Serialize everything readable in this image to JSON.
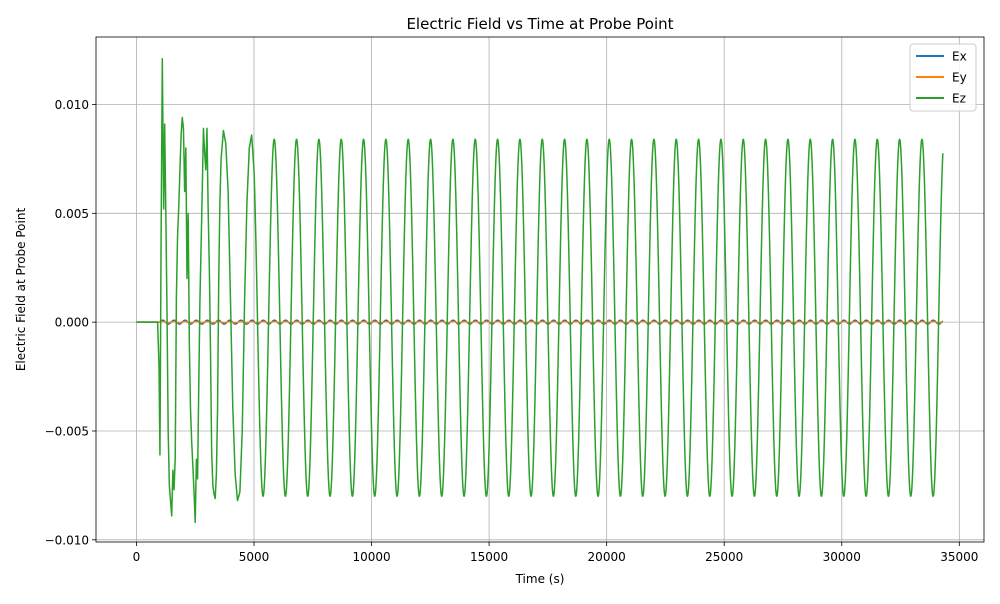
{
  "chart_data": {
    "type": "line",
    "title": "Electric Field vs Time at Probe Point",
    "xlabel": "Time (s)",
    "ylabel": "Electric Field at Probe Point",
    "xlim": [
      -1720,
      36050
    ],
    "ylim": [
      -0.0101,
      0.0131
    ],
    "x_ticks": [
      0,
      5000,
      10000,
      15000,
      20000,
      25000,
      30000,
      35000
    ],
    "x_tick_labels": [
      "0",
      "5000",
      "10000",
      "15000",
      "20000",
      "25000",
      "30000",
      "35000"
    ],
    "y_ticks": [
      -0.01,
      -0.005,
      0.0,
      0.005,
      0.01
    ],
    "y_tick_labels": [
      "−0.010",
      "−0.005",
      "0.000",
      "0.005",
      "0.010"
    ],
    "grid": true,
    "legend_position": "top-right",
    "series": [
      {
        "name": "Ex",
        "color": "#1f77b4",
        "x_start": 0,
        "x_end": 34300,
        "signal_start": 1000,
        "period": 475,
        "amplitude": 9e-05,
        "offset": 0.0,
        "description_points": {
          "x": [
            0,
            1000,
            1240,
            1475,
            1710,
            1950,
            34300
          ],
          "y": [
            0,
            0,
            9e-05,
            0,
            -9e-05,
            0,
            0
          ]
        }
      },
      {
        "name": "Ey",
        "color": "#ff7f0e",
        "x_start": 0,
        "x_end": 34300,
        "signal_start": 1000,
        "period": 475,
        "amplitude": 2e-05,
        "offset": 0.0,
        "description_points": {
          "x": [
            0,
            34300
          ],
          "y": [
            0,
            0
          ]
        }
      },
      {
        "name": "Ez",
        "color": "#2ca02c",
        "x_start": 0,
        "x_end": 34300,
        "signal_start": 1000,
        "period": 950,
        "steady_max": 0.0084,
        "steady_min": -0.008,
        "transient_points": {
          "x": [
            0,
            900,
            960,
            1000,
            1050,
            1100,
            1130,
            1160,
            1200,
            1250,
            1300,
            1350,
            1400,
            1450,
            1500,
            1550,
            1600,
            1650,
            1700,
            1750,
            1800,
            1850,
            1900,
            1950,
            2000,
            2050,
            2100,
            2150,
            2200,
            2250,
            2300,
            2350,
            2400,
            2450,
            2500,
            2550,
            2600,
            2650,
            2700,
            2750,
            2800,
            2850,
            2900,
            2950,
            3000,
            3050,
            3100,
            3150,
            3200,
            3250,
            3300,
            3350,
            3400,
            3450,
            3500,
            3550,
            3600,
            3700,
            3800,
            3900,
            4000,
            4100,
            4200,
            4300,
            4400,
            4500,
            4600,
            4700,
            4800,
            4900,
            5000
          ],
          "y": [
            0,
            0,
            -0.002,
            -0.0061,
            0.004,
            0.0121,
            0.0085,
            0.0052,
            0.0091,
            0.005,
            0.0005,
            -0.005,
            -0.0075,
            -0.0082,
            -0.0089,
            -0.0068,
            -0.0077,
            -0.0062,
            0.0012,
            0.004,
            0.0053,
            0.007,
            0.0086,
            0.0094,
            0.0089,
            0.006,
            0.008,
            0.002,
            0.005,
            -0.001,
            -0.004,
            -0.0055,
            -0.0066,
            -0.0078,
            -0.0092,
            -0.0063,
            -0.0072,
            -0.003,
            0.001,
            0.0035,
            0.0061,
            0.0089,
            0.0078,
            0.007,
            0.0089,
            0.0052,
            0.0025,
            -0.0013,
            -0.006,
            -0.0075,
            -0.0079,
            -0.0081,
            -0.007,
            -0.004,
            0.002,
            0.0055,
            0.0075,
            0.0088,
            0.0082,
            0.006,
            0.001,
            -0.004,
            -0.007,
            -0.0082,
            -0.0078,
            -0.005,
            0.001,
            0.0055,
            0.008,
            0.0086,
            0.007
          ]
        }
      }
    ]
  }
}
